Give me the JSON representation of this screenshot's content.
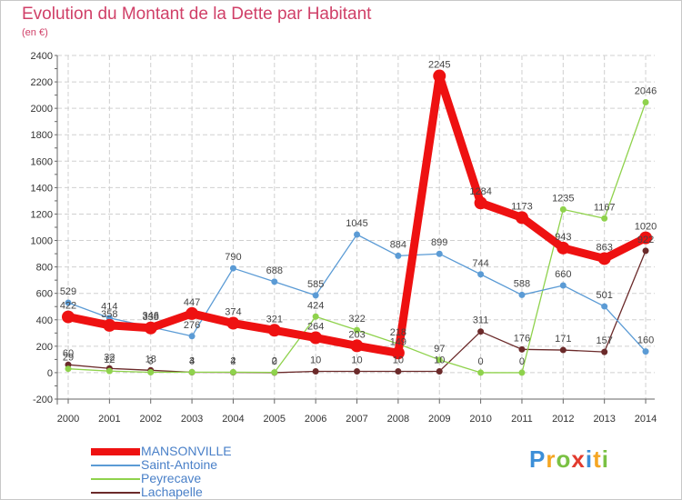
{
  "title": "Evolution du Montant de la Dette par Habitant",
  "subtitle": "(en €)",
  "logo": {
    "letters": [
      "P",
      "r",
      "o",
      "x",
      "i",
      "t",
      "i"
    ],
    "colors": [
      "#3c8fd8",
      "#f5a623",
      "#7ac143",
      "#e23b2e",
      "#3c8fd8",
      "#f5a623",
      "#7ac143"
    ]
  },
  "chart_data": {
    "type": "line",
    "title": "Evolution du Montant de la Dette par Habitant",
    "ylabel": "(en €)",
    "x": [
      "2000",
      "2001",
      "2002",
      "2003",
      "2004",
      "2005",
      "2006",
      "2007",
      "2008",
      "2009",
      "2010",
      "2011",
      "2012",
      "2013",
      "2014"
    ],
    "ylim": [
      -200,
      2400
    ],
    "yticks": [
      -200,
      0,
      200,
      400,
      600,
      800,
      1000,
      1200,
      1400,
      1600,
      1800,
      2000,
      2200,
      2400
    ],
    "grid": true,
    "legend": "bottom-left",
    "series": [
      {
        "name": "MANSONVILLE",
        "color": "#ee1111",
        "values": [
          422,
          358,
          338,
          447,
          374,
          321,
          264,
          203,
          149,
          2245,
          1284,
          1173,
          943,
          863,
          1020
        ]
      },
      {
        "name": "Saint-Antoine",
        "color": "#5b9bd5",
        "values": [
          529,
          414,
          346,
          276,
          790,
          688,
          585,
          1045,
          884,
          899,
          744,
          588,
          660,
          501,
          160
        ]
      },
      {
        "name": "Peyrecave",
        "color": "#8fd24c",
        "values": [
          29,
          12,
          3,
          4,
          4,
          2,
          424,
          322,
          218,
          97,
          0,
          0,
          1235,
          1167,
          2046
        ]
      },
      {
        "name": "Lachapelle",
        "color": "#6b2a2a",
        "values": [
          60,
          32,
          18,
          3,
          2,
          0,
          10,
          10,
          10,
          10,
          311,
          176,
          171,
          157,
          922
        ]
      }
    ]
  }
}
